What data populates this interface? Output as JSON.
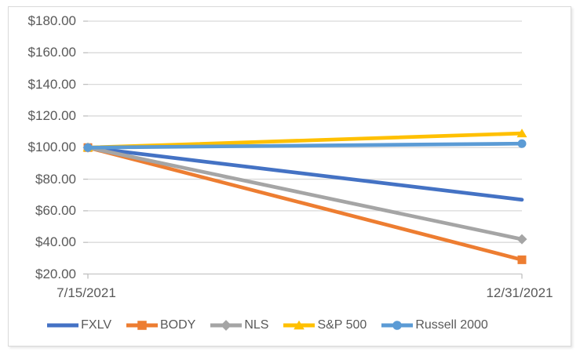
{
  "chart_data": {
    "type": "line",
    "title": "",
    "xlabel": "",
    "ylabel": "",
    "x_tick_labels": [
      "7/15/2021",
      "12/31/2021"
    ],
    "y_tick_labels": [
      "$180.00",
      "$160.00",
      "$140.00",
      "$120.00",
      "$100.00",
      "$80.00",
      "$60.00",
      "$40.00",
      "$20.00"
    ],
    "ylim": [
      20,
      180
    ],
    "y_step": 20,
    "grid": true,
    "legend_position": "bottom",
    "series": [
      {
        "name": "FXLV",
        "color": "#4472C4",
        "marker": "none",
        "values": [
          100,
          67
        ]
      },
      {
        "name": "BODY",
        "color": "#ED7D31",
        "marker": "square",
        "values": [
          100,
          29
        ]
      },
      {
        "name": "NLS",
        "color": "#A5A5A5",
        "marker": "diamond",
        "values": [
          100,
          42
        ]
      },
      {
        "name": "S&P 500",
        "color": "#FFC000",
        "marker": "triangle",
        "values": [
          100,
          109
        ]
      },
      {
        "name": "Russell 2000",
        "color": "#5B9BD5",
        "marker": "circle",
        "values": [
          100,
          102.5
        ]
      }
    ],
    "colors": {
      "gridline": "#D9D9D9",
      "axis_line": "#C6C6C6",
      "tick": "#BFBFBF",
      "axis_text": "#595959",
      "frame_border": "#D9D9D9",
      "background": "#FFFFFF"
    }
  }
}
